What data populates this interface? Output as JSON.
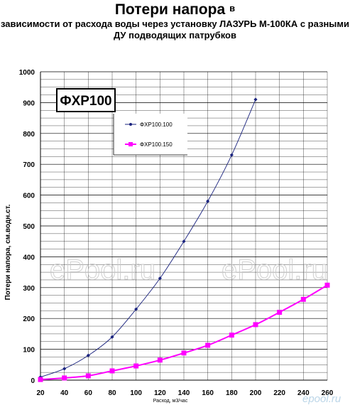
{
  "title": {
    "main": "Потери напора",
    "main_suffix": "в",
    "line2": "зависимости от расхода воды через установку ЛАЗУРЬ М-100КА с разными",
    "line3": "ДУ подводящих патрубков"
  },
  "chart_label": "ФХР100",
  "watermarks": [
    "ePool.ru",
    "ePool.ru"
  ],
  "logo_text": "epool.ru",
  "colors": {
    "series1": "#1a237e",
    "series2": "#ff00ff",
    "grid": "#000000",
    "watermark": "#c8c8c8"
  },
  "chart_data": {
    "type": "line",
    "xlabel": "Расход, м3/час",
    "ylabel": "Потери напора, см.водн.ст.",
    "xlim": [
      20,
      260
    ],
    "ylim": [
      0,
      1000
    ],
    "xticks": [
      20,
      40,
      60,
      80,
      100,
      120,
      140,
      160,
      180,
      200,
      220,
      240,
      260
    ],
    "yticks": [
      0,
      100,
      200,
      300,
      400,
      500,
      600,
      700,
      800,
      900,
      1000
    ],
    "legend": {
      "placement": "upper-left"
    },
    "grid": true,
    "series": [
      {
        "name": "ФХР100.100",
        "marker": "diamond",
        "x": [
          20,
          40,
          60,
          80,
          100,
          120,
          140,
          160,
          180,
          200
        ],
        "y": [
          10,
          37,
          80,
          140,
          230,
          330,
          450,
          580,
          730,
          910
        ]
      },
      {
        "name": "ФХР100.150",
        "marker": "square",
        "x": [
          20,
          40,
          60,
          80,
          100,
          120,
          140,
          160,
          180,
          200,
          220,
          240,
          260
        ],
        "y": [
          2,
          7,
          14,
          30,
          46,
          65,
          88,
          113,
          146,
          180,
          220,
          262,
          308
        ]
      }
    ]
  }
}
